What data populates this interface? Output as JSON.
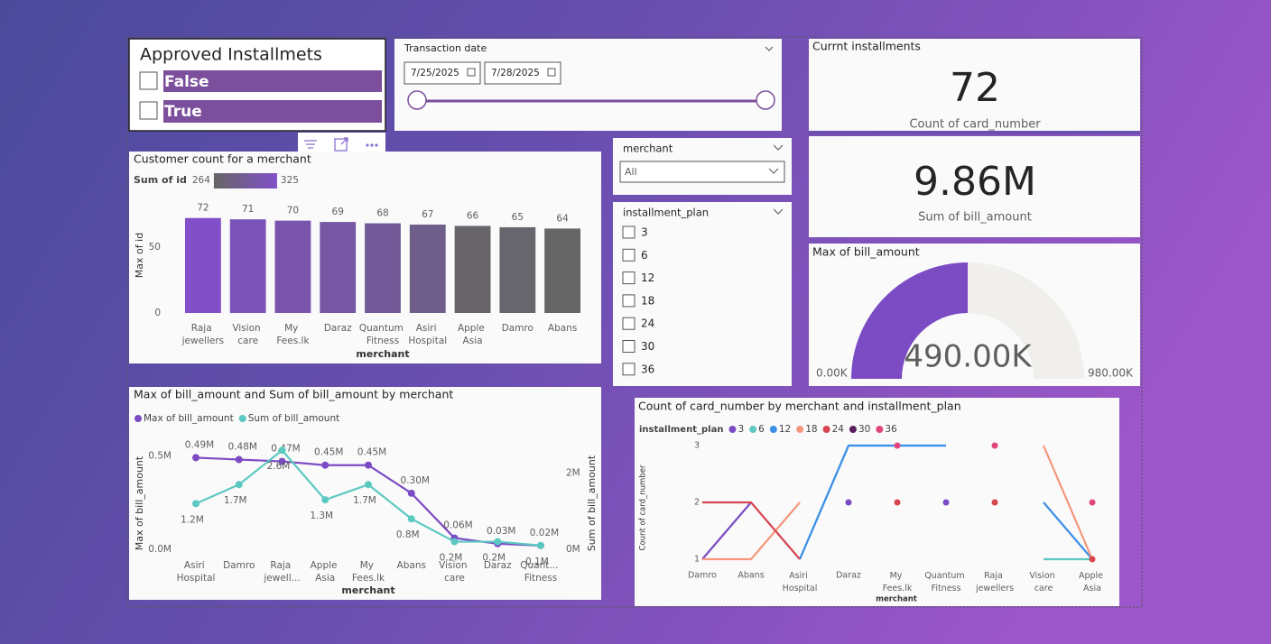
{
  "approved_slicer": {
    "title": "Approved Installmets",
    "options": [
      "False",
      "True"
    ]
  },
  "date_slicer": {
    "title": "Transaction date",
    "start": "7/25/2025",
    "end": "7/28/2025"
  },
  "cards": [
    {
      "title": "Currnt installments",
      "value": "72",
      "label": "Count of card_number"
    },
    {
      "value": "9.86M",
      "label": "Sum of bill_amount"
    }
  ],
  "merchant_slicer": {
    "title": "merchant",
    "selected": "All"
  },
  "plan_slicer": {
    "title": "installment_plan",
    "options": [
      "3",
      "6",
      "12",
      "18",
      "24",
      "30",
      "36"
    ]
  },
  "chart_data": [
    {
      "type": "bar",
      "title": "Customer count for a merchant",
      "legend_title": "Sum of id",
      "legend_range": [
        264,
        325
      ],
      "gradient": [
        "#666666",
        "#8150c8"
      ],
      "categories": [
        "Raja jewellers",
        "Vision care",
        "My Fees.lk",
        "Daraz",
        "Quantum Fitness",
        "Asiri Hospital",
        "Apple Asia",
        "Damro",
        "Abans"
      ],
      "values": [
        72,
        71,
        70,
        69,
        68,
        67,
        66,
        65,
        64
      ],
      "colors": [
        "#8150c8",
        "#7b54b8",
        "#7a55ae",
        "#7757a3",
        "#725a98",
        "#6e5e8a",
        "#666469",
        "#67666c",
        "#666666"
      ],
      "xlabel": "merchant",
      "ylabel": "Max of id",
      "ylim": [
        0,
        80
      ],
      "yticks": [
        0,
        50
      ]
    },
    {
      "type": "line",
      "title": "Max of bill_amount and Sum of bill_amount by merchant",
      "categories": [
        "Asiri Hospital",
        "Damro",
        "Raja jewell...",
        "Apple Asia",
        "My Fees.lk",
        "Abans",
        "Vision care",
        "Daraz",
        "Quant... Fitness"
      ],
      "xlabel": "merchant",
      "ylabel": "Max of bill_amount",
      "y2label": "Sum of bill_amount",
      "ylim": [
        0,
        550000
      ],
      "yticks": [
        {
          "value": 0,
          "label": "0.0M"
        },
        {
          "value": 500000,
          "label": "0.5M"
        }
      ],
      "y2lim": [
        0,
        2700000
      ],
      "y2ticks": [
        {
          "value": 0,
          "label": "0M"
        },
        {
          "value": 2000000,
          "label": "2M"
        }
      ],
      "series": [
        {
          "name": "Max of bill_amount",
          "color": "#7b4bc4",
          "values": [
            490000,
            480000,
            470000,
            450000,
            450000,
            300000,
            60000,
            30000,
            20000
          ],
          "value_labels": [
            "0.49M",
            "0.48M",
            "0.47M",
            "0.45M",
            "0.45M",
            "0.30M",
            "0.06M",
            "0.03M",
            "0.02M"
          ]
        },
        {
          "name": "Sum of bill_amount",
          "color": "#5cc9c0",
          "axis": "y2",
          "values": [
            1200000,
            1700000,
            2600000,
            1300000,
            1700000,
            800000,
            200000,
            200000,
            100000
          ],
          "value_labels": [
            "1.2M",
            "1.7M",
            "2.6M",
            "1.3M",
            "1.7M",
            "0.8M",
            "0.2M",
            "0.2M",
            "0.1M"
          ]
        }
      ]
    },
    {
      "type": "line",
      "title": "Count of card_number by merchant and installment_plan",
      "legend_title": "installment_plan",
      "categories": [
        "Damro",
        "Abans",
        "Asiri Hospital",
        "Daraz",
        "My Fees.lk",
        "Quantum Fitness",
        "Raja jewellers",
        "Vision care",
        "Apple Asia"
      ],
      "xlabel": "merchant",
      "ylabel": "Count of card_number",
      "ylim": [
        1,
        3
      ],
      "yticks": [
        1,
        2,
        3
      ],
      "series": [
        {
          "name": "3",
          "color": "#7b4bc4",
          "values": [
            1,
            2,
            null,
            2,
            null,
            2,
            null,
            null,
            null
          ]
        },
        {
          "name": "6",
          "color": "#5cc9c0",
          "values": [
            null,
            null,
            1,
            3,
            3,
            3,
            null,
            1,
            1
          ]
        },
        {
          "name": "12",
          "color": "#3d8ee8",
          "values": [
            null,
            null,
            1,
            3,
            3,
            3,
            null,
            2,
            1
          ]
        },
        {
          "name": "18",
          "color": "#f4977b",
          "values": [
            1,
            1,
            2,
            null,
            null,
            null,
            null,
            3,
            1
          ]
        },
        {
          "name": "24",
          "color": "#d64550",
          "values": [
            2,
            2,
            1,
            null,
            2,
            null,
            2,
            null,
            1
          ]
        },
        {
          "name": "30",
          "color": "#5a1e5e",
          "values": [
            null,
            null,
            null,
            null,
            null,
            null,
            null,
            null,
            null
          ]
        },
        {
          "name": "36",
          "color": "#e0457b",
          "values": [
            null,
            null,
            null,
            null,
            3,
            null,
            3,
            null,
            2
          ]
        }
      ]
    },
    {
      "type": "gauge",
      "title": "Max of bill_amount",
      "value": 490000,
      "value_label": "490.00K",
      "min": {
        "value": 0,
        "label": "0.00K"
      },
      "max": {
        "value": 980000,
        "label": "980.00K"
      },
      "color": "#7b4bc4",
      "track_color": "#f0efec"
    }
  ]
}
